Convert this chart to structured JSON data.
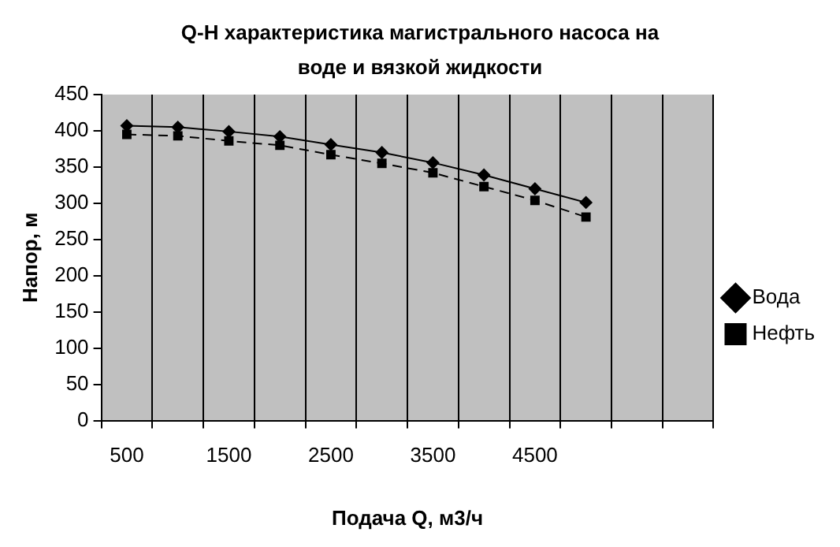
{
  "chart_data": {
    "type": "line",
    "title": "Q-H характеристика магистрального насоса на воде и вязкой жидкости",
    "xlabel": "Подача Q, м3/ч",
    "ylabel": "Напор, м",
    "categories": [
      "500",
      null,
      "1500",
      null,
      "2500",
      null,
      "3500",
      null,
      "4500",
      null,
      null,
      null
    ],
    "series": [
      {
        "name": "Вода",
        "color": "#000000",
        "marker": "diamond",
        "line_style": "solid",
        "values": [
          407,
          405,
          399,
          392,
          381,
          370,
          356,
          339,
          320,
          301,
          null,
          null
        ]
      },
      {
        "name": "Нефть",
        "color": "#000000",
        "marker": "square",
        "line_style": "dashed",
        "values": [
          395,
          393,
          386,
          380,
          367,
          355,
          342,
          323,
          304,
          281,
          null,
          null
        ]
      }
    ],
    "ylim": [
      0,
      450
    ],
    "yticks": [
      0,
      50,
      100,
      150,
      200,
      250,
      300,
      350,
      400,
      450
    ],
    "grid": "x",
    "legend": "right"
  }
}
